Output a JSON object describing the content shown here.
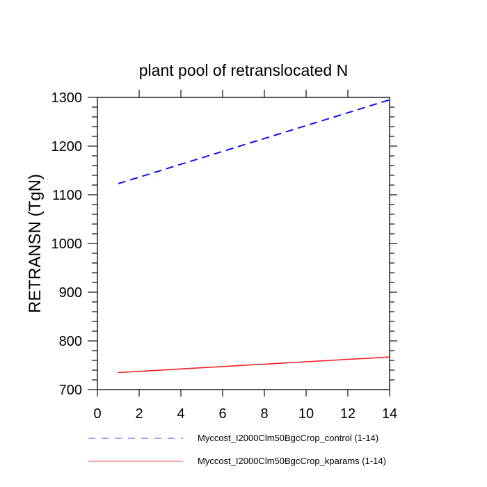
{
  "title": "plant pool of retranslocated N",
  "colors": {
    "background": "#ffffff",
    "axis": "#2f2f2f",
    "text": "#000000",
    "control_line": "#0f0fee",
    "kparams_line": "#ee2222",
    "legend_control_sample": "#8080f0",
    "legend_kparams_sample": "#f09090"
  },
  "chart_data": {
    "type": "line",
    "title": "plant pool of retranslocated N",
    "xlabel": "",
    "ylabel": "RETRANSN (TgN)",
    "xlim": [
      0,
      14
    ],
    "ylim": [
      700,
      1300
    ],
    "x_major_ticks": [
      0,
      2,
      4,
      6,
      8,
      10,
      12,
      14
    ],
    "x_tick_labels": [
      "0",
      "2",
      "4",
      "6",
      "8",
      "10",
      "12",
      "14"
    ],
    "y_major_ticks": [
      700,
      800,
      900,
      1000,
      1100,
      1200,
      1300
    ],
    "y_tick_labels": [
      "700",
      "800",
      "900",
      "1000",
      "1100",
      "1200",
      "1300"
    ],
    "y_minor_step": 20,
    "grid": false,
    "legend_position": "bottom",
    "x": [
      1,
      2,
      3,
      4,
      5,
      6,
      7,
      8,
      9,
      10,
      11,
      12,
      13,
      14
    ],
    "series": [
      {
        "name": "Myccost_I2000Clm50BgcCrop_control (1-14)",
        "style": "dashed",
        "values": [
          1123,
          1136.2,
          1149.5,
          1162.7,
          1175.9,
          1189.2,
          1202.4,
          1215.6,
          1228.8,
          1242.1,
          1255.3,
          1268.5,
          1281.8,
          1295
        ]
      },
      {
        "name": "Myccost_I2000Clm50BgcCrop_kparams (1-14)",
        "style": "solid",
        "values": [
          735,
          737.5,
          739.9,
          742.4,
          744.8,
          747.3,
          749.8,
          752.2,
          754.7,
          757.2,
          759.6,
          762.1,
          764.5,
          767
        ]
      }
    ],
    "legend": [
      {
        "label": "Myccost_I2000Clm50BgcCrop_control (1-14)",
        "style": "dashed"
      },
      {
        "label": "Myccost_I2000Clm50BgcCrop_kparams (1-14)",
        "style": "solid"
      }
    ]
  }
}
